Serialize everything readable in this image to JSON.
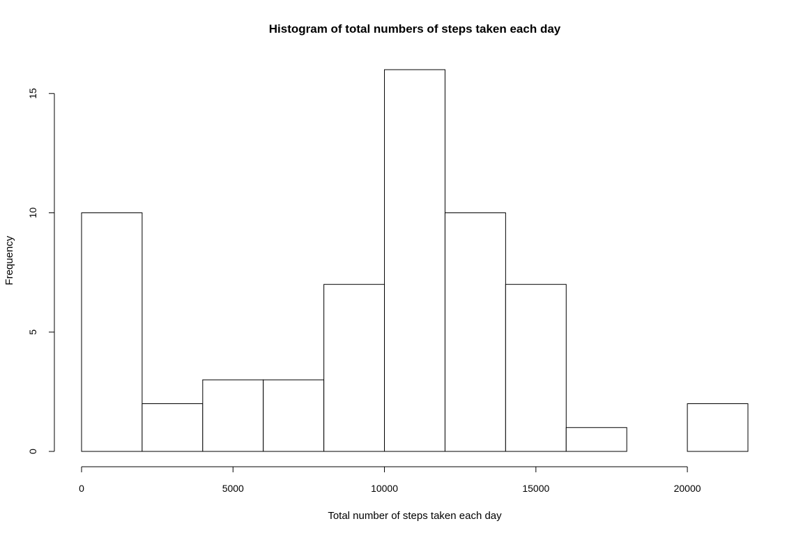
{
  "chart_data": {
    "type": "bar",
    "title": "Histogram of total numbers of steps taken each day",
    "xlabel": "Total number of steps taken each day",
    "ylabel": "Frequency",
    "bins": [
      {
        "from": 0,
        "to": 2000,
        "count": 10
      },
      {
        "from": 2000,
        "to": 4000,
        "count": 2
      },
      {
        "from": 4000,
        "to": 6000,
        "count": 3
      },
      {
        "from": 6000,
        "to": 8000,
        "count": 3
      },
      {
        "from": 8000,
        "to": 10000,
        "count": 7
      },
      {
        "from": 10000,
        "to": 12000,
        "count": 16
      },
      {
        "from": 12000,
        "to": 14000,
        "count": 10
      },
      {
        "from": 14000,
        "to": 16000,
        "count": 7
      },
      {
        "from": 16000,
        "to": 18000,
        "count": 1
      },
      {
        "from": 18000,
        "to": 20000,
        "count": 0
      },
      {
        "from": 20000,
        "to": 22000,
        "count": 2
      }
    ],
    "xlim": [
      0,
      22000
    ],
    "ylim": [
      0,
      16
    ],
    "x_ticks": [
      "0",
      "5000",
      "10000",
      "15000",
      "20000"
    ],
    "y_ticks": [
      "0",
      "5",
      "10",
      "15"
    ],
    "grid": false,
    "legend": "none"
  }
}
